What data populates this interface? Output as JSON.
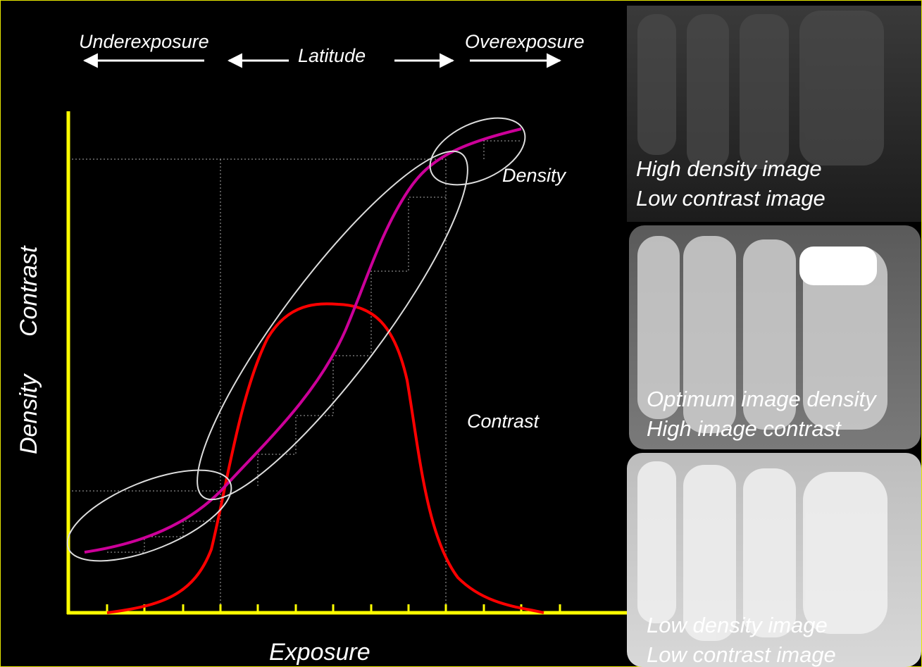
{
  "header": {
    "underexposure": "Underexposure",
    "latitude": "Latitude",
    "overexposure": "Overexposure"
  },
  "axes": {
    "y_label_density": "Density",
    "y_label_contrast": "Contrast",
    "x_label": "Exposure"
  },
  "curve_labels": {
    "density": "Density",
    "contrast": "Contrast"
  },
  "images": [
    {
      "line1": "High density image",
      "line2": "Low contrast image"
    },
    {
      "line1": "Optimum image density",
      "line2": "High image contrast"
    },
    {
      "line1": "Low density image",
      "line2": "Low contrast image"
    }
  ]
}
